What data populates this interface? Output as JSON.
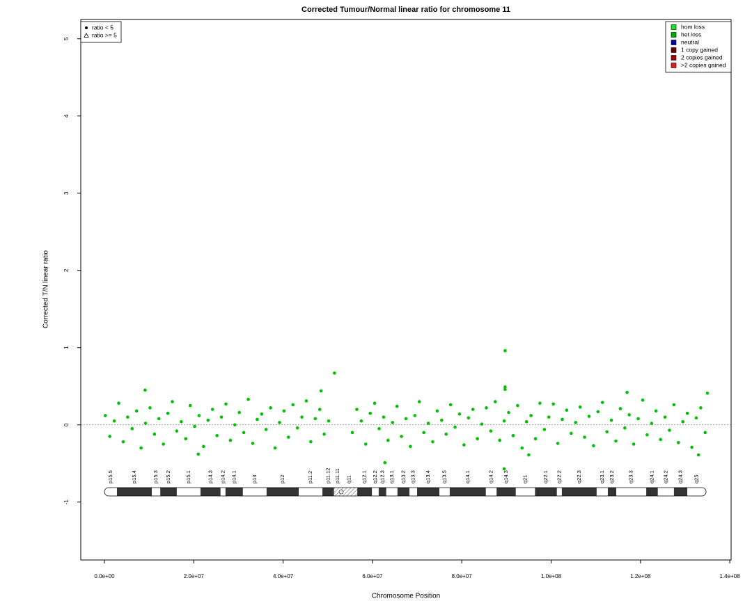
{
  "chart_data": {
    "type": "scatter",
    "title": "Corrected Tumour/Normal linear ratio for chromosome  11",
    "x_label": "Chromosome Position",
    "y_label": "Corrected T/N linear ratio",
    "xlim": [
      -5300000,
      140300000
    ],
    "ylim": [
      -1.75,
      5.25
    ],
    "xticks": [
      {
        "value": 0,
        "label": "0.0e+00"
      },
      {
        "value": 20000000,
        "label": "2.0e+07"
      },
      {
        "value": 40000000,
        "label": "4.0e+07"
      },
      {
        "value": 60000000,
        "label": "6.0e+07"
      },
      {
        "value": 80000000,
        "label": "8.0e+07"
      },
      {
        "value": 100000000,
        "label": "1.0e+08"
      },
      {
        "value": 120000000,
        "label": "1.2e+08"
      },
      {
        "value": 140000000,
        "label": "1.4e+08"
      }
    ],
    "yticks": [
      -1,
      0,
      1,
      2,
      3,
      4,
      5
    ],
    "hline": 0,
    "color": "#00c000",
    "x": [
      200000,
      1200000,
      2200000,
      3200000,
      4200000,
      5200000,
      6200000,
      7200000,
      8200000,
      9200000,
      10200000,
      11200000,
      12200000,
      13200000,
      14200000,
      15200000,
      16200000,
      17200000,
      18200000,
      19200000,
      20200000,
      21200000,
      22200000,
      23200000,
      24200000,
      25200000,
      26200000,
      27200000,
      28200000,
      29200000,
      30200000,
      31200000,
      32200000,
      33200000,
      34200000,
      35200000,
      36200000,
      37200000,
      38200000,
      39200000,
      40200000,
      41200000,
      42200000,
      43200000,
      44200000,
      45200000,
      46200000,
      47200000,
      48200000,
      49200000,
      50200000,
      55500000,
      56500000,
      57500000,
      58500000,
      59500000,
      60500000,
      61500000,
      62500000,
      63500000,
      64500000,
      65500000,
      66500000,
      67500000,
      68500000,
      69500000,
      70500000,
      71500000,
      72500000,
      73500000,
      74500000,
      75500000,
      76500000,
      77500000,
      78500000,
      79500000,
      80500000,
      81500000,
      82500000,
      83500000,
      84500000,
      85500000,
      86500000,
      87500000,
      88500000,
      89500000,
      90500000,
      91500000,
      92500000,
      93500000,
      94500000,
      95500000,
      96500000,
      97500000,
      98500000,
      99500000,
      100500000,
      101500000,
      102500000,
      103500000,
      104500000,
      105500000,
      106500000,
      107500000,
      108500000,
      109500000,
      110500000,
      111500000,
      112500000,
      113500000,
      114500000,
      115500000,
      116500000,
      117500000,
      118500000,
      119500000,
      120500000,
      121500000,
      122500000,
      123500000,
      124500000,
      125500000,
      126500000,
      127500000,
      128500000,
      129500000,
      130500000,
      131500000,
      132500000,
      133500000,
      134500000,
      51500000,
      89700000,
      89700000,
      89700000,
      62800000,
      89500000,
      95000000,
      21000000,
      133000000,
      9100000,
      48500000,
      117000000,
      135000000
    ],
    "values": [
      0.12,
      -0.15,
      0.05,
      0.28,
      -0.22,
      0.1,
      -0.05,
      0.18,
      -0.3,
      0.02,
      0.22,
      -0.12,
      0.08,
      -0.25,
      0.15,
      0.3,
      -0.08,
      0.04,
      -0.18,
      0.25,
      -0.02,
      0.12,
      -0.28,
      0.06,
      0.2,
      -0.14,
      0.1,
      0.27,
      -0.2,
      0.0,
      0.16,
      -0.1,
      0.33,
      -0.24,
      0.07,
      0.14,
      -0.06,
      0.22,
      -0.3,
      0.03,
      0.18,
      -0.16,
      0.26,
      -0.04,
      0.1,
      0.31,
      -0.22,
      0.08,
      0.2,
      -0.12,
      0.05,
      -0.1,
      0.2,
      0.05,
      -0.25,
      0.15,
      0.28,
      -0.05,
      0.1,
      -0.2,
      0.03,
      0.24,
      -0.15,
      0.08,
      -0.28,
      0.12,
      0.3,
      -0.1,
      0.02,
      -0.22,
      0.18,
      0.06,
      -0.12,
      0.26,
      -0.03,
      0.14,
      -0.26,
      0.09,
      0.2,
      -0.18,
      0.01,
      0.22,
      -0.08,
      0.3,
      -0.2,
      0.05,
      0.16,
      -0.14,
      0.25,
      -0.3,
      0.04,
      0.12,
      -0.18,
      0.28,
      -0.06,
      0.1,
      0.27,
      -0.24,
      0.07,
      0.19,
      -0.11,
      0.03,
      0.23,
      -0.16,
      0.11,
      -0.27,
      0.17,
      0.29,
      -0.09,
      0.06,
      -0.21,
      0.21,
      -0.04,
      0.13,
      -0.25,
      0.08,
      0.32,
      -0.13,
      0.02,
      0.18,
      -0.19,
      0.1,
      -0.07,
      0.26,
      -0.23,
      0.04,
      0.15,
      -0.29,
      0.09,
      0.22,
      -0.1,
      0.67,
      0.96,
      0.49,
      0.46,
      -0.49,
      -0.57,
      -0.39,
      -0.38,
      -0.39,
      0.45,
      0.44,
      0.42,
      0.41
    ],
    "shape_legend": [
      {
        "label": "ratio < 5",
        "shape": "dot"
      },
      {
        "label": "ratio >= 5",
        "shape": "triangle"
      }
    ],
    "state_legend": [
      {
        "label": "hom loss",
        "color": "#22dd22"
      },
      {
        "label": "het loss",
        "color": "#00aa00"
      },
      {
        "label": "neutral",
        "color": "#0000aa"
      },
      {
        "label": "1 copy gained",
        "color": "#660000"
      },
      {
        "label": "2 copies gained",
        "color": "#990000"
      },
      {
        "label": ">2 copies gained",
        "color": "#dd2222"
      }
    ],
    "bands": [
      {
        "label": "p15.5",
        "start": 0,
        "end": 2800000,
        "stain": "gneg"
      },
      {
        "label": "p15.4",
        "start": 2800000,
        "end": 10600000,
        "stain": "gpos"
      },
      {
        "label": "p15.3",
        "start": 10600000,
        "end": 12500000,
        "stain": "gneg"
      },
      {
        "label": "p15.2",
        "start": 12500000,
        "end": 16200000,
        "stain": "gpos"
      },
      {
        "label": "p15.1",
        "start": 16200000,
        "end": 21500000,
        "stain": "gneg"
      },
      {
        "label": "p14.3",
        "start": 21500000,
        "end": 26000000,
        "stain": "gpos"
      },
      {
        "label": "p14.2",
        "start": 26000000,
        "end": 27100000,
        "stain": "gneg"
      },
      {
        "label": "p14.1",
        "start": 27100000,
        "end": 31000000,
        "stain": "gpos"
      },
      {
        "label": "p13",
        "start": 31000000,
        "end": 36300000,
        "stain": "gneg"
      },
      {
        "label": "p12",
        "start": 36300000,
        "end": 43500000,
        "stain": "gpos"
      },
      {
        "label": "p11.2",
        "start": 43500000,
        "end": 48800000,
        "stain": "gneg"
      },
      {
        "label": "p11.12",
        "start": 48800000,
        "end": 51400000,
        "stain": "gpos"
      },
      {
        "label": "p11.11",
        "start": 51400000,
        "end": 53000000,
        "stain": "acen"
      },
      {
        "label": "q11",
        "start": 53000000,
        "end": 56600000,
        "stain": "acen"
      },
      {
        "label": "q12.1",
        "start": 56600000,
        "end": 59900000,
        "stain": "gpos"
      },
      {
        "label": "q12.2",
        "start": 59900000,
        "end": 61400000,
        "stain": "gneg"
      },
      {
        "label": "q12.3",
        "start": 61400000,
        "end": 63100000,
        "stain": "gpos"
      },
      {
        "label": "q13.1",
        "start": 63100000,
        "end": 65600000,
        "stain": "gneg"
      },
      {
        "label": "q13.2",
        "start": 65600000,
        "end": 68300000,
        "stain": "gpos"
      },
      {
        "label": "q13.3",
        "start": 68300000,
        "end": 70000000,
        "stain": "gneg"
      },
      {
        "label": "q13.4",
        "start": 70000000,
        "end": 75000000,
        "stain": "gpos"
      },
      {
        "label": "q13.5",
        "start": 75000000,
        "end": 77300000,
        "stain": "gneg"
      },
      {
        "label": "q14.1",
        "start": 77300000,
        "end": 85400000,
        "stain": "gpos"
      },
      {
        "label": "q14.2",
        "start": 85400000,
        "end": 87800000,
        "stain": "gneg"
      },
      {
        "label": "q14.3",
        "start": 87800000,
        "end": 92100000,
        "stain": "gpos"
      },
      {
        "label": "q21",
        "start": 92100000,
        "end": 96400000,
        "stain": "gneg"
      },
      {
        "label": "q22.1",
        "start": 96400000,
        "end": 101300000,
        "stain": "gpos"
      },
      {
        "label": "q22.2",
        "start": 101300000,
        "end": 102400000,
        "stain": "gneg"
      },
      {
        "label": "q22.3",
        "start": 102400000,
        "end": 110200000,
        "stain": "gpos"
      },
      {
        "label": "q23.1",
        "start": 110200000,
        "end": 112700000,
        "stain": "gneg"
      },
      {
        "label": "q23.2",
        "start": 112700000,
        "end": 114600000,
        "stain": "gpos"
      },
      {
        "label": "q23.3",
        "start": 114600000,
        "end": 121300000,
        "stain": "gneg"
      },
      {
        "label": "q24.1",
        "start": 121300000,
        "end": 123900000,
        "stain": "gpos"
      },
      {
        "label": "q24.2",
        "start": 123900000,
        "end": 127500000,
        "stain": "gneg"
      },
      {
        "label": "q24.3",
        "start": 127500000,
        "end": 130500000,
        "stain": "gpos"
      },
      {
        "label": "q25",
        "start": 130500000,
        "end": 134700000,
        "stain": "gneg"
      }
    ]
  }
}
